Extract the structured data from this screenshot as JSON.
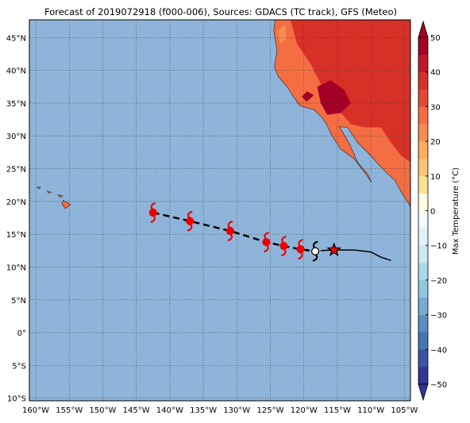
{
  "title": "Forecast of 2019072918 (f000-006), Sources: GDACS (TC track), GFS (Meteo)",
  "map": {
    "lonlim": [
      -160.95,
      -104.1
    ],
    "latlim": [
      -10.4,
      47.7
    ],
    "ocean_color": "#8fb4d9",
    "land_color": "#f46d43",
    "lon_ticks": [
      {
        "value": -160,
        "label": "160°W"
      },
      {
        "value": -155,
        "label": "155°W"
      },
      {
        "value": -150,
        "label": "150°W"
      },
      {
        "value": -145,
        "label": "145°W"
      },
      {
        "value": -140,
        "label": "140°W"
      },
      {
        "value": -135,
        "label": "135°W"
      },
      {
        "value": -130,
        "label": "130°W"
      },
      {
        "value": -125,
        "label": "125°W"
      },
      {
        "value": -120,
        "label": "120°W"
      },
      {
        "value": -115,
        "label": "115°W"
      },
      {
        "value": -110,
        "label": "110°W"
      },
      {
        "value": -105,
        "label": "105°W"
      }
    ],
    "lat_ticks": [
      {
        "value": 45,
        "label": "45°N"
      },
      {
        "value": 40,
        "label": "40°N"
      },
      {
        "value": 35,
        "label": "35°N"
      },
      {
        "value": 30,
        "label": "30°N"
      },
      {
        "value": 25,
        "label": "25°N"
      },
      {
        "value": 20,
        "label": "20°N"
      },
      {
        "value": 15,
        "label": "15°N"
      },
      {
        "value": 10,
        "label": "10°N"
      },
      {
        "value": 5,
        "label": "5°N"
      },
      {
        "value": 0,
        "label": "0°"
      },
      {
        "value": -5,
        "label": "5°S"
      },
      {
        "value": -10,
        "label": "10°S"
      }
    ]
  },
  "track": {
    "forecast_lon": [
      -142.5,
      -137,
      -131,
      -125.6,
      -123,
      -120.5,
      -118.3
    ],
    "forecast_lat": [
      18.3,
      17,
      15.5,
      13.8,
      13.2,
      12.7,
      12.4
    ],
    "current_lon": -115.5,
    "current_lat": 12.6,
    "path_lon": [
      -117.5,
      -115.5,
      -112.5,
      -110,
      -108.5,
      -107
    ],
    "path_lat": [
      12.5,
      12.6,
      12.6,
      12.3,
      11.5,
      11.0
    ]
  },
  "colorbar": {
    "label": "Max Temperature (°C)",
    "lim": [
      -50,
      50
    ],
    "ticks": [
      {
        "value": 50,
        "label": "50"
      },
      {
        "value": 40,
        "label": "40"
      },
      {
        "value": 30,
        "label": "30"
      },
      {
        "value": 20,
        "label": "20"
      },
      {
        "value": 10,
        "label": "10"
      },
      {
        "value": 0,
        "label": "0"
      },
      {
        "value": -10,
        "label": "−10"
      },
      {
        "value": -20,
        "label": "−20"
      },
      {
        "value": -30,
        "label": "−30"
      },
      {
        "value": -40,
        "label": "−40"
      },
      {
        "value": -50,
        "label": "−50"
      }
    ],
    "colors": [
      "#313695",
      "#3a54a4",
      "#4575b4",
      "#5b8fc2",
      "#74add1",
      "#92c5de",
      "#abd9e9",
      "#cbe9f2",
      "#e0f3f8",
      "#f2fafc",
      "#fffde0",
      "#fee090",
      "#fdc478",
      "#fdae61",
      "#f88d52",
      "#f46d43",
      "#e34a33",
      "#d73027",
      "#bd1a2a",
      "#a50026"
    ]
  }
}
